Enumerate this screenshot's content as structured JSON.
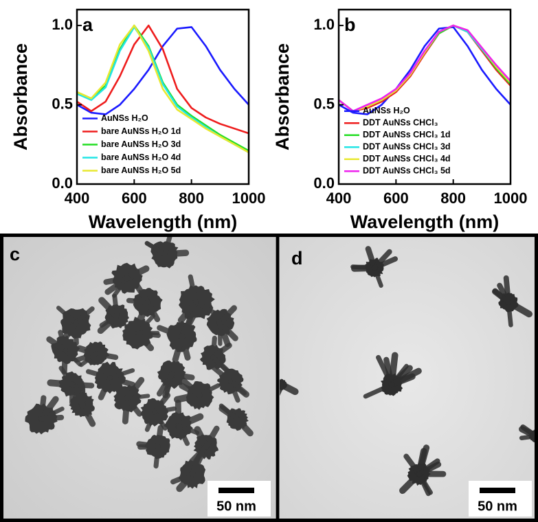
{
  "chart_data": [
    {
      "type": "line",
      "label": "a",
      "ylabel": "Absorbance",
      "xlabel": "Wavelength (nm)",
      "x": [
        400,
        450,
        500,
        550,
        600,
        650,
        700,
        750,
        800,
        850,
        900,
        950,
        1000
      ],
      "xlim": [
        400,
        1000
      ],
      "xticks": [
        400,
        600,
        800,
        1000
      ],
      "ylim": [
        0,
        1.1
      ],
      "yticks": [
        {
          "value": 0,
          "label": "0.0"
        },
        0.5,
        {
          "value": 1,
          "label": "1.0"
        }
      ],
      "legend": "lower left",
      "series": [
        {
          "name": "AuNSs H₂O",
          "color": "#1a1aff",
          "values": [
            0.5,
            0.45,
            0.44,
            0.5,
            0.6,
            0.72,
            0.87,
            0.98,
            0.99,
            0.87,
            0.72,
            0.6,
            0.5
          ]
        },
        {
          "name": "bare AuNSs H₂O 1d",
          "color": "#ee1c1c",
          "values": [
            0.52,
            0.46,
            0.52,
            0.68,
            0.88,
            1.0,
            0.85,
            0.6,
            0.48,
            0.42,
            0.38,
            0.35,
            0.32
          ]
        },
        {
          "name": "bare AuNSs H₂O 3d",
          "color": "#22dd22",
          "values": [
            0.58,
            0.54,
            0.62,
            0.85,
            1.0,
            0.87,
            0.64,
            0.5,
            0.43,
            0.37,
            0.31,
            0.26,
            0.21
          ]
        },
        {
          "name": "bare AuNSs H₂O 4d",
          "color": "#22e5e5",
          "values": [
            0.57,
            0.53,
            0.61,
            0.84,
            0.99,
            0.86,
            0.63,
            0.49,
            0.42,
            0.36,
            0.3,
            0.25,
            0.2
          ]
        },
        {
          "name": "bare AuNSs H₂O 5d",
          "color": "#e8e830",
          "values": [
            0.58,
            0.54,
            0.64,
            0.88,
            1.0,
            0.84,
            0.6,
            0.47,
            0.41,
            0.35,
            0.3,
            0.25,
            0.2
          ]
        }
      ]
    },
    {
      "type": "line",
      "label": "b",
      "ylabel": "Absorbance",
      "xlabel": "Wavelength (nm)",
      "x": [
        400,
        450,
        500,
        550,
        600,
        650,
        700,
        750,
        800,
        850,
        900,
        950,
        1000
      ],
      "xlim": [
        400,
        1000
      ],
      "xticks": [
        400,
        600,
        800,
        1000
      ],
      "ylim": [
        0,
        1.1
      ],
      "yticks": [
        {
          "value": 0,
          "label": "0.0"
        },
        0.5,
        {
          "value": 1,
          "label": "1.0"
        }
      ],
      "legend": "lower left",
      "series": [
        {
          "name": "AuNSs H₂O",
          "color": "#1a1aff",
          "values": [
            0.5,
            0.45,
            0.44,
            0.5,
            0.6,
            0.72,
            0.87,
            0.98,
            0.99,
            0.87,
            0.72,
            0.6,
            0.5
          ]
        },
        {
          "name": "DDT AuNSs CHCl₃",
          "color": "#ee1c1c",
          "values": [
            0.53,
            0.46,
            0.48,
            0.52,
            0.58,
            0.68,
            0.82,
            0.95,
            1.0,
            0.96,
            0.84,
            0.72,
            0.62
          ]
        },
        {
          "name": "DDT AuNSs CHCl₃ 1d",
          "color": "#22dd22",
          "values": [
            0.53,
            0.46,
            0.49,
            0.53,
            0.59,
            0.69,
            0.83,
            0.95,
            1.0,
            0.96,
            0.85,
            0.73,
            0.63
          ]
        },
        {
          "name": "DDT AuNSs CHCl₃ 3d",
          "color": "#22e5e5",
          "values": [
            0.53,
            0.46,
            0.49,
            0.53,
            0.59,
            0.69,
            0.83,
            0.96,
            1.0,
            0.96,
            0.85,
            0.74,
            0.64
          ]
        },
        {
          "name": "DDT AuNSs CHCl₃ 4d",
          "color": "#e8e830",
          "values": [
            0.53,
            0.46,
            0.49,
            0.53,
            0.59,
            0.69,
            0.83,
            0.96,
            1.0,
            0.97,
            0.86,
            0.74,
            0.64
          ]
        },
        {
          "name": "DDT AuNSs CHCl₃ 5d",
          "color": "#ee22ee",
          "values": [
            0.53,
            0.46,
            0.5,
            0.54,
            0.6,
            0.7,
            0.84,
            0.96,
            1.0,
            0.97,
            0.86,
            0.75,
            0.65
          ]
        }
      ]
    }
  ],
  "images": [
    {
      "label": "c",
      "scale_bar": "50 nm"
    },
    {
      "label": "d",
      "scale_bar": "50 nm"
    }
  ]
}
